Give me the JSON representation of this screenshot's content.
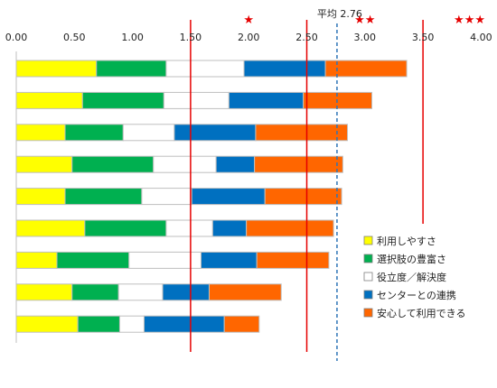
{
  "chart_data": {
    "type": "bar",
    "orientation": "horizontal",
    "stacked": true,
    "xlim": [
      0,
      4.0
    ],
    "x_ticks": [
      "0.00",
      "0.50",
      "1.00",
      "1.50",
      "2.00",
      "2.50",
      "3.00",
      "3.50",
      "4.00"
    ],
    "x_tick_values": [
      0,
      0.5,
      1.0,
      1.5,
      2.0,
      2.5,
      3.0,
      3.5,
      4.0
    ],
    "grid": false,
    "legend_position": "bottom-right",
    "series": [
      {
        "name": "利用しやすさ",
        "color": "#ffff00",
        "values": [
          0.69,
          0.57,
          0.42,
          0.48,
          0.42,
          0.59,
          0.35,
          0.48,
          0.53
        ]
      },
      {
        "name": "選択肢の豊富さ",
        "color": "#00b050",
        "values": [
          0.6,
          0.7,
          0.5,
          0.7,
          0.66,
          0.7,
          0.62,
          0.4,
          0.36
        ]
      },
      {
        "name": "役立度／解決度",
        "color": "#ffffff",
        "values": [
          0.67,
          0.56,
          0.44,
          0.54,
          0.43,
          0.4,
          0.62,
          0.38,
          0.21
        ]
      },
      {
        "name": "センターとの連携",
        "color": "#0070c0",
        "values": [
          0.7,
          0.64,
          0.7,
          0.33,
          0.63,
          0.29,
          0.48,
          0.4,
          0.69
        ]
      },
      {
        "name": "安心して利用できる",
        "color": "#ff6600",
        "values": [
          0.7,
          0.59,
          0.79,
          0.76,
          0.66,
          0.75,
          0.62,
          0.62,
          0.3
        ]
      }
    ],
    "reference_lines": [
      {
        "value": 1.5,
        "color": "#e60000",
        "style": "solid"
      },
      {
        "value": 2.5,
        "color": "#e60000",
        "style": "solid"
      },
      {
        "value": 3.5,
        "color": "#e60000",
        "style": "solid"
      },
      {
        "value": 2.76,
        "color": "#2e75b6",
        "style": "dashed"
      }
    ],
    "average": {
      "label": "平均 2.76",
      "value": 2.76
    },
    "star_labels": [
      {
        "text": "★",
        "value": 2.0
      },
      {
        "text": "★★",
        "value": 3.0
      },
      {
        "text": "★★★",
        "value": 3.9
      }
    ]
  }
}
